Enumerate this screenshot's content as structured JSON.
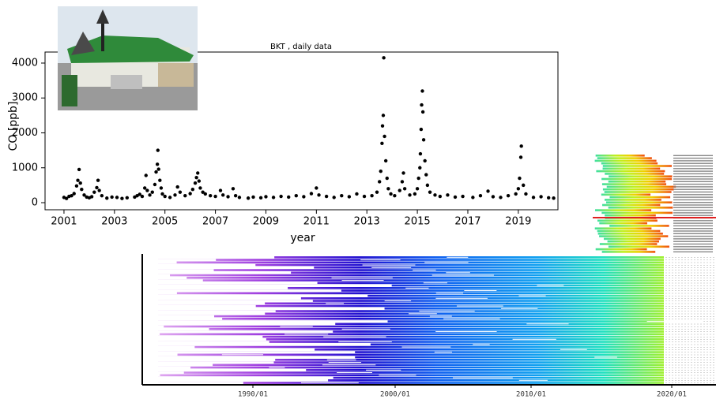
{
  "chart_data": {
    "type": "scatter",
    "title": "BKT , daily data",
    "x_label": "year",
    "y_label": "CO [ppb]",
    "color": "#000000",
    "xlim": [
      2000.25,
      2020.57
    ],
    "xticks": [
      2001,
      2003,
      2005,
      2007,
      2009,
      2011,
      2013,
      2015,
      2017,
      2019
    ],
    "ylim": [
      -203,
      4316
    ],
    "yticks": [
      0,
      1000,
      2000,
      3000,
      4000
    ],
    "x": [
      2001.0,
      2001.1,
      2001.2,
      2001.3,
      2001.4,
      2001.5,
      2001.55,
      2001.6,
      2001.65,
      2001.7,
      2001.8,
      2001.9,
      2002.0,
      2002.1,
      2002.2,
      2002.3,
      2002.35,
      2002.4,
      2002.5,
      2002.7,
      2002.9,
      2003.1,
      2003.3,
      2003.5,
      2003.8,
      2003.9,
      2004.0,
      2004.1,
      2004.2,
      2004.25,
      2004.3,
      2004.4,
      2004.5,
      2004.6,
      2004.65,
      2004.7,
      2004.72,
      2004.75,
      2004.8,
      2004.85,
      2004.9,
      2005.0,
      2005.2,
      2005.4,
      2005.5,
      2005.6,
      2005.8,
      2006.0,
      2006.1,
      2006.2,
      2006.25,
      2006.3,
      2006.35,
      2006.4,
      2006.5,
      2006.6,
      2006.8,
      2007.0,
      2007.2,
      2007.3,
      2007.5,
      2007.7,
      2007.8,
      2007.95,
      2008.3,
      2008.5,
      2008.8,
      2009.0,
      2009.3,
      2009.6,
      2009.9,
      2010.2,
      2010.5,
      2010.8,
      2011.0,
      2011.1,
      2011.4,
      2011.7,
      2012.0,
      2012.3,
      2012.6,
      2012.9,
      2013.2,
      2013.4,
      2013.5,
      2013.55,
      2013.6,
      2013.62,
      2013.65,
      2013.67,
      2013.7,
      2013.75,
      2013.8,
      2013.85,
      2013.95,
      2014.1,
      2014.3,
      2014.4,
      2014.45,
      2014.5,
      2014.7,
      2014.9,
      2015.0,
      2015.05,
      2015.1,
      2015.12,
      2015.15,
      2015.17,
      2015.2,
      2015.22,
      2015.25,
      2015.3,
      2015.35,
      2015.4,
      2015.5,
      2015.7,
      2015.9,
      2016.2,
      2016.5,
      2016.8,
      2017.2,
      2017.5,
      2017.8,
      2018.0,
      2018.3,
      2018.6,
      2018.9,
      2019.0,
      2019.05,
      2019.1,
      2019.12,
      2019.2,
      2019.3,
      2019.6,
      2019.9,
      2020.2,
      2020.4
    ],
    "values": [
      150,
      120,
      180,
      200,
      260,
      480,
      640,
      950,
      560,
      380,
      220,
      160,
      140,
      170,
      300,
      430,
      640,
      350,
      200,
      130,
      160,
      150,
      120,
      140,
      160,
      200,
      240,
      180,
      420,
      780,
      350,
      220,
      300,
      520,
      880,
      1100,
      1500,
      960,
      640,
      420,
      250,
      180,
      150,
      220,
      450,
      300,
      200,
      260,
      380,
      560,
      720,
      850,
      620,
      420,
      300,
      250,
      200,
      180,
      350,
      220,
      170,
      400,
      200,
      150,
      130,
      160,
      140,
      170,
      150,
      180,
      160,
      200,
      170,
      260,
      420,
      220,
      180,
      150,
      200,
      170,
      250,
      180,
      200,
      300,
      600,
      900,
      1700,
      2200,
      2500,
      4150,
      1900,
      1200,
      700,
      400,
      250,
      200,
      350,
      600,
      850,
      400,
      220,
      250,
      400,
      700,
      1000,
      1400,
      2100,
      2800,
      3200,
      2600,
      1800,
      1200,
      800,
      500,
      300,
      220,
      180,
      220,
      160,
      180,
      150,
      200,
      330,
      170,
      150,
      200,
      250,
      400,
      700,
      1300,
      1620,
      500,
      250,
      150,
      170,
      140,
      130
    ]
  },
  "timeline": {
    "x_labels": [
      "1990/01",
      "2000/01",
      "2010/01",
      "2020/01"
    ]
  }
}
